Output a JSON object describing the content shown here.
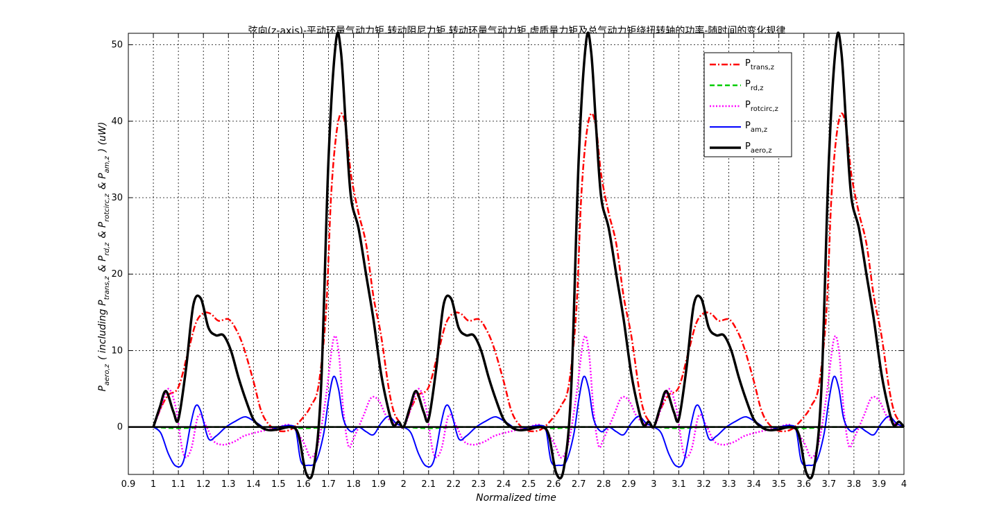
{
  "chart_data": {
    "type": "line",
    "title": "弦向(z-axis)-平动环量气动力矩,转动阻尼力矩,转动环量气动力矩,虚质量力矩及总气动力矩绕扭转轴的功率-随时间的变化规律",
    "xlabel": "Normalized time",
    "ylabel": {
      "main": "P",
      "main_sub": "aero,z",
      "middle": "( including P",
      "s1": "trans,z",
      "and1": "& P",
      "s2": "rd,z",
      "and2": "& P",
      "s3": "rotcirc,z",
      "and3": "& P",
      "s4": "am,z",
      "unit": ")  (uW)"
    },
    "xlim": [
      0.9,
      4.0
    ],
    "ylim": [
      -6.2,
      51.5
    ],
    "x_ticks": [
      "0.9",
      "1",
      "1.1",
      "1.2",
      "1.3",
      "1.4",
      "1.5",
      "1.6",
      "1.7",
      "1.8",
      "1.9",
      "2",
      "2.1",
      "2.2",
      "2.3",
      "2.4",
      "2.5",
      "2.6",
      "2.7",
      "2.8",
      "2.9",
      "3",
      "3.1",
      "3.2",
      "3.3",
      "3.4",
      "3.5",
      "3.6",
      "3.7",
      "3.8",
      "3.9",
      "4"
    ],
    "y_ticks": [
      "0",
      "10",
      "20",
      "30",
      "40",
      "50"
    ],
    "grid": true,
    "legend_position": "top-right",
    "period": 1.0,
    "periods": [
      1,
      2,
      3
    ],
    "series": [
      {
        "name": "trans,z",
        "color": "#ff0000",
        "style": "dash-dot",
        "phase": [
          0.0,
          0.03,
          0.06,
          0.1,
          0.14,
          0.17,
          0.2,
          0.23,
          0.26,
          0.3,
          0.33,
          0.36,
          0.4,
          0.43,
          0.46,
          0.5,
          0.55,
          0.6,
          0.63,
          0.66,
          0.69,
          0.71,
          0.73,
          0.75,
          0.77,
          0.79,
          0.82,
          0.85,
          0.88,
          0.91,
          0.94,
          0.96,
          0.98,
          1.0
        ],
        "values": [
          0,
          2.5,
          4.2,
          5.2,
          10,
          13.6,
          14.9,
          14.8,
          13.9,
          14.1,
          12.8,
          10.5,
          6,
          2.2,
          0.4,
          -0.5,
          -0.3,
          1.3,
          2.8,
          5.4,
          15,
          30,
          38,
          41,
          39,
          33,
          28,
          24,
          17,
          12,
          5.2,
          2.1,
          0.8,
          0
        ]
      },
      {
        "name": "rd,z",
        "color": "#00cc00",
        "style": "dashed",
        "phase": [
          0.0,
          0.05,
          0.1,
          0.15,
          0.2,
          0.3,
          0.4,
          0.5,
          0.55,
          0.6,
          0.65,
          0.7,
          0.75,
          0.8,
          0.9,
          1.0
        ],
        "values": [
          0,
          -0.1,
          -0.15,
          -0.1,
          0,
          0,
          0,
          0,
          -0.1,
          -0.15,
          -0.1,
          0,
          0,
          0,
          0,
          0
        ]
      },
      {
        "name": "rotcirc,z",
        "color": "#ff00ff",
        "style": "dotted",
        "phase": [
          0.0,
          0.03,
          0.06,
          0.09,
          0.12,
          0.15,
          0.18,
          0.21,
          0.24,
          0.27,
          0.3,
          0.33,
          0.36,
          0.4,
          0.45,
          0.5,
          0.55,
          0.6,
          0.63,
          0.66,
          0.69,
          0.72,
          0.74,
          0.76,
          0.78,
          0.8,
          0.84,
          0.87,
          0.9,
          0.93,
          0.96,
          1.0
        ],
        "values": [
          0,
          2.5,
          5,
          2.5,
          -3.5,
          -3,
          1.5,
          0.2,
          -1.8,
          -2.3,
          -2.2,
          -1.8,
          -1.2,
          -0.8,
          -0.4,
          0,
          0.2,
          -2,
          -4,
          -2,
          4,
          11.5,
          10,
          2,
          -2.5,
          -1.5,
          1.5,
          3.8,
          3.5,
          1.5,
          0.5,
          0
        ]
      },
      {
        "name": "am,z",
        "color": "#0000ff",
        "style": "solid",
        "phase": [
          0.0,
          0.03,
          0.06,
          0.09,
          0.12,
          0.15,
          0.17,
          0.19,
          0.22,
          0.25,
          0.29,
          0.33,
          0.36,
          0.38,
          0.42,
          0.46,
          0.5,
          0.55,
          0.57,
          0.59,
          0.62,
          0.65,
          0.68,
          0.7,
          0.72,
          0.74,
          0.76,
          0.79,
          0.82,
          0.85,
          0.88,
          0.91,
          0.94,
          0.97,
          1.0
        ],
        "values": [
          0,
          -0.8,
          -3.5,
          -5.1,
          -4.5,
          0.5,
          2.8,
          2,
          -1.5,
          -1.2,
          0,
          0.8,
          1.3,
          1.2,
          0.4,
          -0.4,
          0,
          0.2,
          -0.5,
          -4.5,
          -5,
          -4.5,
          -1,
          3.5,
          6.6,
          5,
          1,
          -0.6,
          0,
          -0.6,
          -1,
          0.5,
          1.4,
          0.5,
          0
        ]
      },
      {
        "name": "aero,z",
        "color": "#000000",
        "style": "solid-thick",
        "phase": [
          0.0,
          0.025,
          0.05,
          0.08,
          0.1,
          0.13,
          0.16,
          0.19,
          0.22,
          0.25,
          0.28,
          0.31,
          0.34,
          0.37,
          0.4,
          0.43,
          0.46,
          0.5,
          0.55,
          0.58,
          0.61,
          0.64,
          0.67,
          0.7,
          0.73,
          0.75,
          0.77,
          0.79,
          0.82,
          0.85,
          0.88,
          0.91,
          0.94,
          0.96,
          0.98,
          1.0
        ],
        "values": [
          0,
          2.5,
          4.7,
          2,
          1,
          7.5,
          16,
          16.8,
          13,
          12,
          12,
          10,
          6.5,
          3.5,
          1,
          0,
          -0.4,
          -0.3,
          0,
          -1,
          -6,
          -5.5,
          5,
          35,
          50.5,
          49,
          39,
          30,
          26,
          20,
          14,
          7,
          2.2,
          0.2,
          0.7,
          0
        ]
      }
    ],
    "zero_line": true
  }
}
